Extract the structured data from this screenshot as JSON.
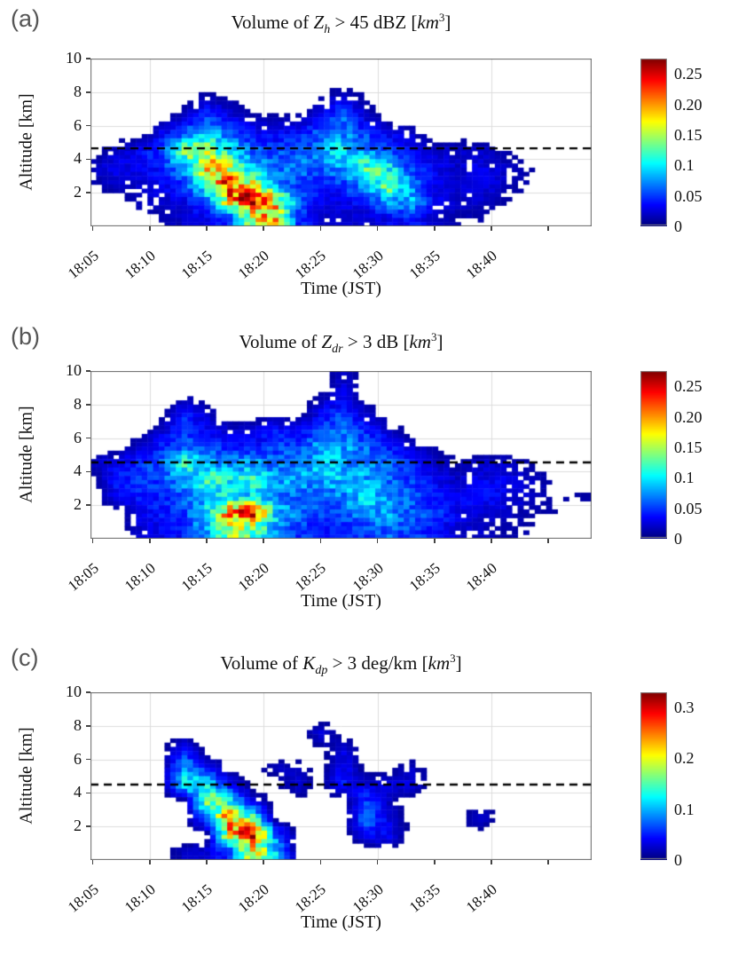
{
  "figure_type": "three-panel radar echo volume time-height heatmaps",
  "chart_data": [
    {
      "type": "heatmap",
      "panel": "(a)",
      "title": "Volume of Zh > 45 dBZ [km3]",
      "title_parts": {
        "prefix": "Volume of ",
        "symbol": "Z",
        "subscript": "h",
        "condition": " > 45 dBZ [",
        "unit": "km",
        "exponent": "3",
        "suffix": "]"
      },
      "xlabel": "Time (JST)",
      "ylabel": "Altitude [km]",
      "x_ticks": [
        "18:05",
        "18:10",
        "18:15",
        "18:20",
        "18:25",
        "18:30",
        "18:35",
        "18:40",
        ""
      ],
      "x_tick_minutes_after_1800": [
        5,
        10,
        15,
        20,
        25,
        30,
        35,
        40,
        45
      ],
      "y_ticks": [
        10,
        8,
        6,
        4,
        2
      ],
      "x_range_minutes_after_1800": [
        4.8,
        48.8
      ],
      "y_range_km": [
        0,
        10
      ],
      "grid_minutes": [
        10,
        20,
        30,
        40
      ],
      "grid_km": [
        2,
        4,
        6,
        8
      ],
      "dashed_line_km": 4.65,
      "colormap": "jet",
      "vmax": 0.275,
      "colorbar_ticks": [
        {
          "value": 0.25,
          "label": "0.25"
        },
        {
          "value": 0.2,
          "label": "0.20"
        },
        {
          "value": 0.15,
          "label": "0.15"
        },
        {
          "value": 0.1,
          "label": "0.1"
        },
        {
          "value": 0.05,
          "label": "0.05"
        },
        {
          "value": 0,
          "label": "0"
        }
      ],
      "time_bin_centers_min": [
        5,
        7,
        9,
        11,
        13,
        15,
        17,
        19,
        21,
        23,
        25,
        27,
        29,
        31,
        33,
        35,
        37,
        39,
        41,
        43,
        45,
        47
      ],
      "altitude_bin_centers_km": [
        9.5,
        8.5,
        7.5,
        6.5,
        5.5,
        4.5,
        3.5,
        2.5,
        1.5,
        0.5
      ],
      "values_km3": [
        [
          0,
          0,
          0,
          0,
          0,
          0,
          0,
          0,
          0,
          0,
          0,
          0,
          0,
          0,
          0,
          0,
          0,
          0,
          0,
          0,
          0,
          0
        ],
        [
          0,
          0,
          0,
          0,
          0,
          0,
          0,
          0,
          0,
          0,
          0,
          0,
          0,
          0,
          0,
          0,
          0,
          0,
          0,
          0,
          0,
          0
        ],
        [
          0,
          0,
          0,
          0,
          0,
          0.02,
          0.01,
          0,
          0,
          0,
          0.01,
          0.03,
          0.01,
          0,
          0,
          0,
          0,
          0,
          0,
          0,
          0,
          0
        ],
        [
          0,
          0,
          0,
          0,
          0.02,
          0.05,
          0.03,
          0.01,
          0.01,
          0.01,
          0.03,
          0.06,
          0.02,
          0,
          0,
          0,
          0,
          0,
          0,
          0,
          0,
          0
        ],
        [
          0,
          0,
          0,
          0.03,
          0.06,
          0.09,
          0.06,
          0.04,
          0.03,
          0.04,
          0.06,
          0.07,
          0.05,
          0.03,
          0.02,
          0,
          0,
          0,
          0,
          0,
          0,
          0
        ],
        [
          0,
          0.02,
          0.03,
          0.05,
          0.14,
          0.15,
          0.1,
          0.06,
          0.05,
          0.06,
          0.07,
          0.11,
          0.07,
          0.05,
          0.03,
          0.02,
          0.02,
          0.02,
          0.01,
          0,
          0,
          0
        ],
        [
          0.02,
          0.03,
          0.03,
          0.04,
          0.08,
          0.2,
          0.15,
          0.09,
          0.06,
          0.07,
          0.06,
          0.08,
          0.13,
          0.1,
          0.05,
          0.03,
          0.02,
          0.03,
          0.02,
          0.01,
          0,
          0
        ],
        [
          0.01,
          0.02,
          0.02,
          0.03,
          0.05,
          0.14,
          0.24,
          0.16,
          0.08,
          0.05,
          0.04,
          0.05,
          0.08,
          0.14,
          0.07,
          0.03,
          0.02,
          0.03,
          0.02,
          0.01,
          0,
          0
        ],
        [
          0,
          0,
          0.02,
          0.02,
          0.03,
          0.06,
          0.18,
          0.26,
          0.18,
          0.06,
          0.03,
          0.03,
          0.04,
          0.08,
          0.09,
          0.03,
          0.02,
          0.02,
          0.01,
          0,
          0,
          0
        ],
        [
          0,
          0,
          0,
          0.01,
          0.02,
          0.03,
          0.05,
          0.15,
          0.2,
          0.05,
          0.02,
          0.02,
          0.02,
          0.03,
          0.04,
          0.02,
          0.01,
          0.01,
          0,
          0,
          0,
          0
        ]
      ]
    },
    {
      "type": "heatmap",
      "panel": "(b)",
      "title": "Volume of Zdr > 3 dB [km3]",
      "title_parts": {
        "prefix": "Volume of ",
        "symbol": "Z",
        "subscript": "dr",
        "condition": " > 3 dB [",
        "unit": "km",
        "exponent": "3",
        "suffix": "]"
      },
      "xlabel": "Time (JST)",
      "ylabel": "Altitude [km]",
      "x_ticks": [
        "18:05",
        "18:10",
        "18:15",
        "18:20",
        "18:25",
        "18:30",
        "18:35",
        "18:40",
        ""
      ],
      "x_tick_minutes_after_1800": [
        5,
        10,
        15,
        20,
        25,
        30,
        35,
        40,
        45
      ],
      "y_ticks": [
        10,
        8,
        6,
        4,
        2
      ],
      "x_range_minutes_after_1800": [
        4.8,
        48.8
      ],
      "y_range_km": [
        0,
        10
      ],
      "grid_minutes": [
        10,
        20,
        30,
        40
      ],
      "grid_km": [
        2,
        4,
        6,
        8
      ],
      "dashed_line_km": 4.55,
      "colormap": "jet",
      "vmax": 0.275,
      "colorbar_ticks": [
        {
          "value": 0.25,
          "label": "0.25"
        },
        {
          "value": 0.2,
          "label": "0.20"
        },
        {
          "value": 0.15,
          "label": "0.15"
        },
        {
          "value": 0.1,
          "label": "0.1"
        },
        {
          "value": 0.05,
          "label": "0.05"
        },
        {
          "value": 0,
          "label": "0"
        }
      ],
      "time_bin_centers_min": [
        5,
        7,
        9,
        11,
        13,
        15,
        17,
        19,
        21,
        23,
        25,
        27,
        29,
        31,
        33,
        35,
        37,
        39,
        41,
        43,
        45,
        47
      ],
      "altitude_bin_centers_km": [
        9.5,
        8.5,
        7.5,
        6.5,
        5.5,
        4.5,
        3.5,
        2.5,
        1.5,
        0.5
      ],
      "values_km3": [
        [
          0,
          0,
          0,
          0,
          0,
          0,
          0,
          0,
          0,
          0,
          0,
          0.02,
          0,
          0,
          0,
          0,
          0,
          0,
          0,
          0,
          0,
          0
        ],
        [
          0,
          0,
          0,
          0,
          0.01,
          0,
          0,
          0,
          0,
          0,
          0.01,
          0.03,
          0,
          0,
          0,
          0,
          0,
          0,
          0,
          0,
          0,
          0
        ],
        [
          0,
          0,
          0,
          0,
          0.04,
          0.02,
          0,
          0,
          0,
          0,
          0.03,
          0.05,
          0.02,
          0,
          0,
          0,
          0,
          0,
          0,
          0,
          0,
          0
        ],
        [
          0,
          0,
          0,
          0.02,
          0.05,
          0.03,
          0.02,
          0.02,
          0.04,
          0.03,
          0.05,
          0.06,
          0.04,
          0.02,
          0,
          0,
          0,
          0,
          0,
          0,
          0,
          0
        ],
        [
          0,
          0,
          0.02,
          0.04,
          0.06,
          0.05,
          0.04,
          0.04,
          0.05,
          0.05,
          0.08,
          0.08,
          0.06,
          0.04,
          0.02,
          0.01,
          0,
          0,
          0,
          0,
          0,
          0
        ],
        [
          0.02,
          0.03,
          0.04,
          0.06,
          0.12,
          0.08,
          0.07,
          0.08,
          0.06,
          0.07,
          0.09,
          0.08,
          0.07,
          0.06,
          0.04,
          0.02,
          0.01,
          0.02,
          0.02,
          0.01,
          0,
          0
        ],
        [
          0,
          0.04,
          0.05,
          0.05,
          0.08,
          0.13,
          0.1,
          0.12,
          0.08,
          0.08,
          0.08,
          0.09,
          0.08,
          0.06,
          0.05,
          0.03,
          0.02,
          0.03,
          0.03,
          0.02,
          0.01,
          0
        ],
        [
          0,
          0.03,
          0.04,
          0.04,
          0.06,
          0.09,
          0.1,
          0.09,
          0.07,
          0.06,
          0.06,
          0.07,
          0.1,
          0.07,
          0.06,
          0.04,
          0.03,
          0.04,
          0.03,
          0.02,
          0.01,
          0.01
        ],
        [
          0,
          0,
          0.03,
          0.04,
          0.05,
          0.1,
          0.2,
          0.25,
          0.1,
          0.06,
          0.05,
          0.06,
          0.07,
          0.08,
          0.06,
          0.05,
          0.03,
          0.02,
          0.02,
          0.01,
          0.01,
          0
        ],
        [
          0,
          0,
          0.02,
          0.03,
          0.04,
          0.08,
          0.16,
          0.12,
          0.08,
          0.05,
          0.04,
          0.04,
          0.05,
          0.06,
          0.05,
          0.04,
          0.02,
          0.02,
          0.01,
          0.01,
          0,
          0
        ]
      ]
    },
    {
      "type": "heatmap",
      "panel": "(c)",
      "title": "Volume of Kdp > 3 deg/km [km3]",
      "title_parts": {
        "prefix": "Volume of ",
        "symbol": "K",
        "subscript": "dp",
        "condition": " > 3 deg/km [",
        "unit": "km",
        "exponent": "3",
        "suffix": "]"
      },
      "xlabel": "Time (JST)",
      "ylabel": "Altitude [km]",
      "x_ticks": [
        "18:05",
        "18:10",
        "18:15",
        "18:20",
        "18:25",
        "18:30",
        "18:35",
        "18:40",
        ""
      ],
      "x_tick_minutes_after_1800": [
        5,
        10,
        15,
        20,
        25,
        30,
        35,
        40,
        45
      ],
      "y_ticks": [
        10,
        8,
        6,
        4,
        2
      ],
      "x_range_minutes_after_1800": [
        4.8,
        48.8
      ],
      "y_range_km": [
        0,
        10
      ],
      "grid_minutes": [
        10,
        20,
        30,
        40
      ],
      "grid_km": [
        2,
        4,
        6,
        8
      ],
      "dashed_line_km": 4.5,
      "colormap": "jet",
      "vmax": 0.33,
      "colorbar_ticks": [
        {
          "value": 0.3,
          "label": "0.3"
        },
        {
          "value": 0.2,
          "label": "0.2"
        },
        {
          "value": 0.1,
          "label": "0.1"
        },
        {
          "value": 0,
          "label": "0"
        }
      ],
      "time_bin_centers_min": [
        5,
        7,
        9,
        11,
        13,
        15,
        17,
        19,
        21,
        23,
        25,
        27,
        29,
        31,
        33,
        35,
        37,
        39,
        41,
        43,
        45,
        47
      ],
      "altitude_bin_centers_km": [
        9.5,
        8.5,
        7.5,
        6.5,
        5.5,
        4.5,
        3.5,
        2.5,
        1.5,
        0.5
      ],
      "values_km3": [
        [
          0,
          0,
          0,
          0,
          0,
          0,
          0,
          0,
          0,
          0,
          0,
          0,
          0,
          0,
          0,
          0,
          0,
          0,
          0,
          0,
          0,
          0
        ],
        [
          0,
          0,
          0,
          0,
          0,
          0,
          0,
          0,
          0,
          0,
          0,
          0,
          0,
          0,
          0,
          0,
          0,
          0,
          0,
          0,
          0,
          0
        ],
        [
          0,
          0,
          0,
          0,
          0,
          0,
          0,
          0,
          0,
          0,
          0.03,
          0,
          0,
          0,
          0,
          0,
          0,
          0,
          0,
          0,
          0,
          0
        ],
        [
          0,
          0,
          0,
          0,
          0.05,
          0,
          0,
          0,
          0,
          0,
          0,
          0.03,
          0,
          0,
          0,
          0,
          0,
          0,
          0,
          0,
          0,
          0
        ],
        [
          0,
          0,
          0,
          0,
          0.1,
          0.04,
          0,
          0,
          0.02,
          0.02,
          0,
          0.04,
          0,
          0,
          0.02,
          0,
          0,
          0,
          0,
          0,
          0,
          0
        ],
        [
          0,
          0,
          0,
          0,
          0.12,
          0.12,
          0.04,
          0,
          0,
          0.03,
          0,
          0.05,
          0.03,
          0.03,
          0.03,
          0,
          0,
          0,
          0,
          0,
          0,
          0
        ],
        [
          0,
          0,
          0,
          0,
          0,
          0.18,
          0.12,
          0.03,
          0,
          0,
          0,
          0,
          0.06,
          0.02,
          0,
          0,
          0,
          0,
          0,
          0,
          0,
          0
        ],
        [
          0,
          0,
          0,
          0,
          0,
          0.08,
          0.26,
          0.15,
          0,
          0,
          0,
          0,
          0.08,
          0.03,
          0,
          0,
          0,
          0.03,
          0,
          0,
          0,
          0
        ],
        [
          0,
          0,
          0,
          0,
          0,
          0,
          0.2,
          0.3,
          0.08,
          0,
          0,
          0,
          0.04,
          0.04,
          0,
          0,
          0,
          0,
          0,
          0,
          0,
          0
        ],
        [
          0,
          0,
          0,
          0,
          0.02,
          0.03,
          0.06,
          0.2,
          0.12,
          0,
          0,
          0,
          0,
          0,
          0,
          0,
          0,
          0,
          0,
          0,
          0,
          0
        ]
      ]
    }
  ]
}
